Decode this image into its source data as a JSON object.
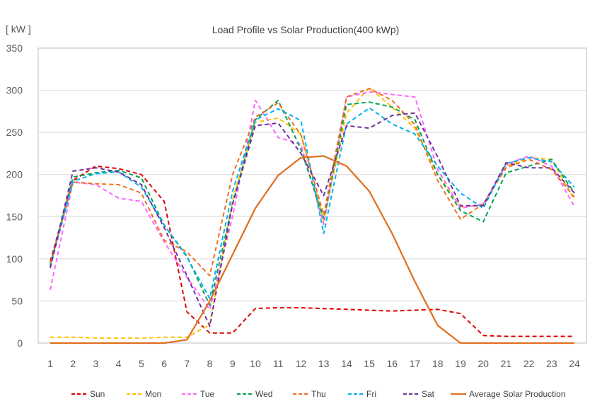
{
  "chart_data": {
    "type": "line",
    "title": "Load Profile vs Solar Production(400 kWp)",
    "ylabel": "[ kW ]",
    "xlabel": "",
    "ylim": [
      0,
      350
    ],
    "yticks": [
      0,
      50,
      100,
      150,
      200,
      250,
      300,
      350
    ],
    "x": [
      1,
      2,
      3,
      4,
      5,
      6,
      7,
      8,
      9,
      10,
      11,
      12,
      13,
      14,
      15,
      16,
      17,
      18,
      19,
      20,
      21,
      22,
      23,
      24
    ],
    "grid": "horizontal",
    "legend_position": "bottom",
    "series": [
      {
        "name": "Sun",
        "color": "#e00000",
        "dash": "dashed",
        "values": [
          97,
          193,
          210,
          207,
          200,
          168,
          37,
          12,
          12,
          41,
          42,
          42,
          41,
          40,
          39,
          38,
          39,
          40,
          35,
          9,
          8,
          8,
          8,
          8
        ]
      },
      {
        "name": "Mon",
        "color": "#ffc000",
        "dash": "dashed",
        "values": [
          7,
          7,
          6,
          6,
          6,
          7,
          7,
          22,
          170,
          262,
          267,
          248,
          145,
          273,
          303,
          280,
          255,
          200,
          162,
          163,
          210,
          220,
          218,
          170
        ]
      },
      {
        "name": "Tue",
        "color": "#ff66ff",
        "dash": "dashed",
        "values": [
          63,
          191,
          188,
          172,
          168,
          120,
          78,
          40,
          150,
          288,
          244,
          236,
          141,
          292,
          298,
          295,
          292,
          206,
          160,
          165,
          212,
          222,
          210,
          162
        ]
      },
      {
        "name": "Wed",
        "color": "#00a550",
        "dash": "dashed",
        "values": [
          92,
          197,
          202,
          205,
          196,
          140,
          103,
          45,
          165,
          265,
          288,
          230,
          148,
          283,
          286,
          280,
          265,
          200,
          157,
          144,
          202,
          210,
          218,
          178
        ]
      },
      {
        "name": "Thu",
        "color": "#ed6f20",
        "dash": "dashed",
        "values": [
          95,
          191,
          189,
          188,
          178,
          122,
          108,
          80,
          200,
          268,
          285,
          247,
          152,
          292,
          302,
          288,
          259,
          193,
          147,
          165,
          208,
          218,
          206,
          173
        ]
      },
      {
        "name": "Fri",
        "color": "#00b0f0",
        "dash": "dashed",
        "values": [
          90,
          192,
          201,
          203,
          185,
          140,
          102,
          53,
          180,
          265,
          278,
          264,
          130,
          260,
          279,
          260,
          248,
          210,
          178,
          160,
          213,
          220,
          215,
          185
        ]
      },
      {
        "name": "Sat",
        "color": "#7030a0",
        "dash": "dashed",
        "values": [
          89,
          204,
          208,
          203,
          188,
          137,
          80,
          20,
          165,
          258,
          261,
          225,
          175,
          258,
          255,
          270,
          273,
          221,
          163,
          163,
          214,
          208,
          208,
          178
        ]
      },
      {
        "name": "Average Solar Production",
        "color": "#e07020",
        "dash": "solid",
        "values": [
          0,
          0,
          0,
          0,
          0,
          0,
          4,
          50,
          105,
          160,
          199,
          220,
          222,
          210,
          180,
          130,
          73,
          21,
          0,
          0,
          0,
          0,
          0,
          0
        ]
      }
    ]
  }
}
